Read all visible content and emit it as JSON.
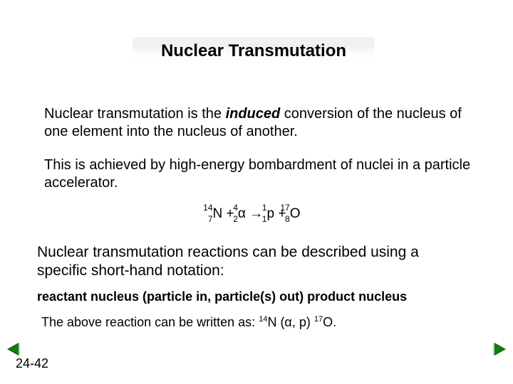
{
  "title": "Nuclear Transmutation",
  "p1_a": "Nuclear transmutation is the ",
  "p1_i": "induced",
  "p1_b": " conversion of the nucleus of one element into the nucleus of another.",
  "p2": "This is achieved by high-energy bombardment of nuclei in a particle accelerator.",
  "eq": {
    "r1": {
      "mass": "14",
      "atomic": "7",
      "sym": "N"
    },
    "plus1": " + ",
    "r2": {
      "mass": "4",
      "atomic": "2",
      "sym": "α"
    },
    "arrow": " → ",
    "p1": {
      "mass": "1",
      "atomic": "1",
      "sym": "p"
    },
    "plus2": " + ",
    "p2": {
      "mass": "17",
      "atomic": "8",
      "sym": "O"
    }
  },
  "p3": "Nuclear transmutation reactions can be described using a specific short-hand notation:",
  "p4": "reactant nucleus (particle in, particle(s) out) product nucleus",
  "p5_a": "The above reaction can be written as: ",
  "p5_n1_mass": "14",
  "p5_n1_sym": "N",
  "p5_mid": " (α, p) ",
  "p5_n2_mass": "17",
  "p5_n2_sym": "O",
  "p5_end": ".",
  "page": "24-42",
  "colors": {
    "text": "#000000",
    "bg": "#ffffff",
    "nav": "#006600"
  },
  "fonts": {
    "title_size": 24,
    "body_size": 20,
    "note_size": 18,
    "super_size": 12
  }
}
